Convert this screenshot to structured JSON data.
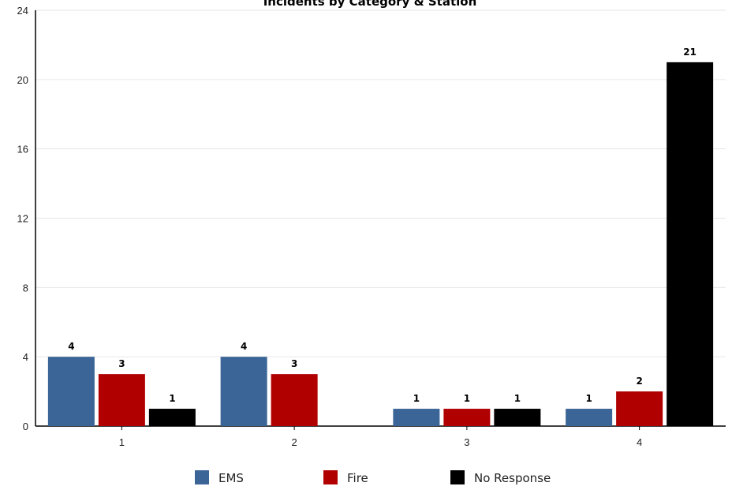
{
  "chart_data": {
    "type": "bar",
    "title": "Incidents by Category & Station",
    "xlabel": "",
    "ylabel": "",
    "categories": [
      "1",
      "2",
      "3",
      "4"
    ],
    "series": [
      {
        "name": "EMS",
        "color": "#3a6596",
        "values": [
          4,
          4,
          1,
          1
        ]
      },
      {
        "name": "Fire",
        "color": "#b00000",
        "values": [
          3,
          3,
          1,
          2
        ]
      },
      {
        "name": "No Response",
        "color": "#000000",
        "values": [
          1,
          0,
          1,
          21
        ]
      }
    ],
    "ylim": [
      0,
      24
    ],
    "yticks": [
      0,
      4,
      8,
      12,
      16,
      20,
      24
    ],
    "grid": true,
    "legend_position": "bottom-center"
  }
}
